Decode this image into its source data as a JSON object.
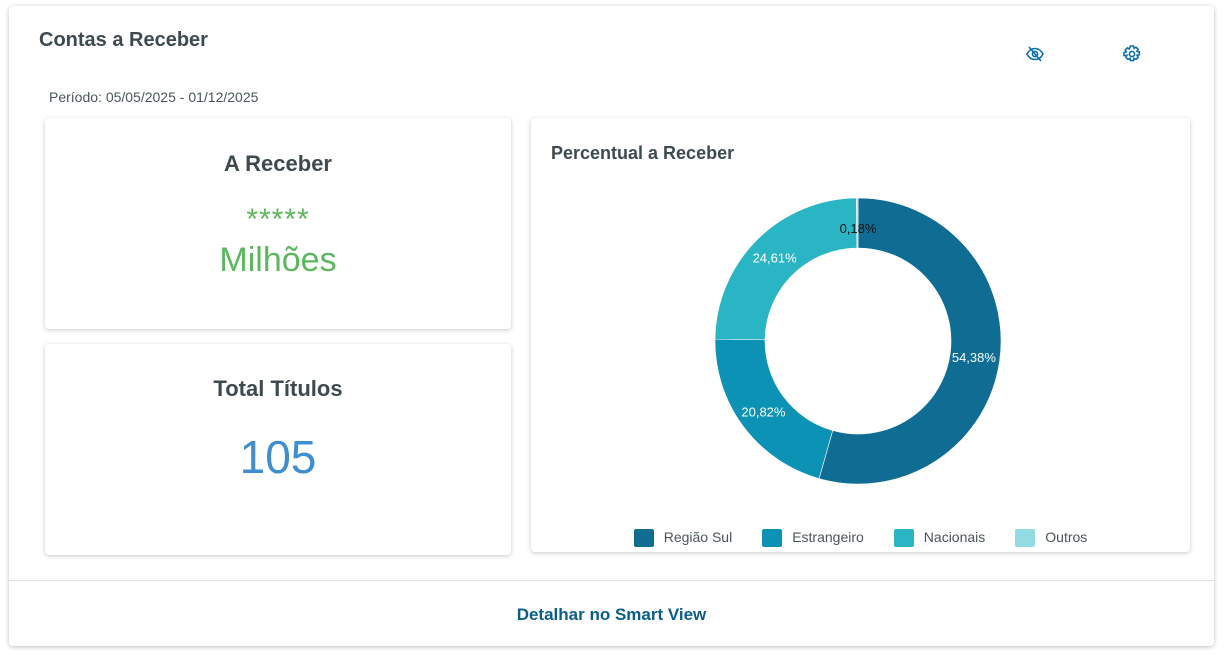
{
  "header": {
    "title": "Contas a Receber",
    "period": "Período: 05/05/2025 - 01/12/2025",
    "icons": [
      "eye-off-icon",
      "gear-icon"
    ]
  },
  "receber": {
    "title": "A Receber",
    "masked": "*****",
    "unit": "Milhões",
    "color": "#5cb85c"
  },
  "titulos": {
    "title": "Total Títulos",
    "value": "105",
    "color": "#3d8fd1"
  },
  "footer": {
    "link": "Detalhar no Smart View"
  },
  "chart_data": {
    "type": "pie",
    "donut": true,
    "title": "Percentual a Receber",
    "categories": [
      "Região Sul",
      "Estrangeiro",
      "Nacionais",
      "Outros"
    ],
    "values": [
      54.38,
      20.82,
      24.61,
      0.18
    ],
    "labels": [
      "54,38%",
      "20,82%",
      "24,61%",
      "0,18%"
    ],
    "colors": [
      "#0f6c92",
      "#0c92b5",
      "#29b5c4",
      "#93dbe3"
    ],
    "legend": "bottom"
  }
}
